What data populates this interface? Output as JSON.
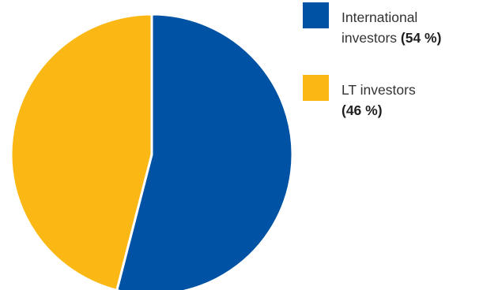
{
  "chart_data": {
    "type": "pie",
    "title": "",
    "slices": [
      {
        "label_line1": "International",
        "label_line2": "investors",
        "value_label": "(54 %)",
        "value": 54,
        "color": "#0052A5"
      },
      {
        "label_line1": "LT investors",
        "label_line2": "",
        "value_label": "(46 %)",
        "value": 46,
        "color": "#FBB814"
      }
    ],
    "legend_position": "right",
    "start_angle": "12 o'clock",
    "direction": "clockwise"
  }
}
